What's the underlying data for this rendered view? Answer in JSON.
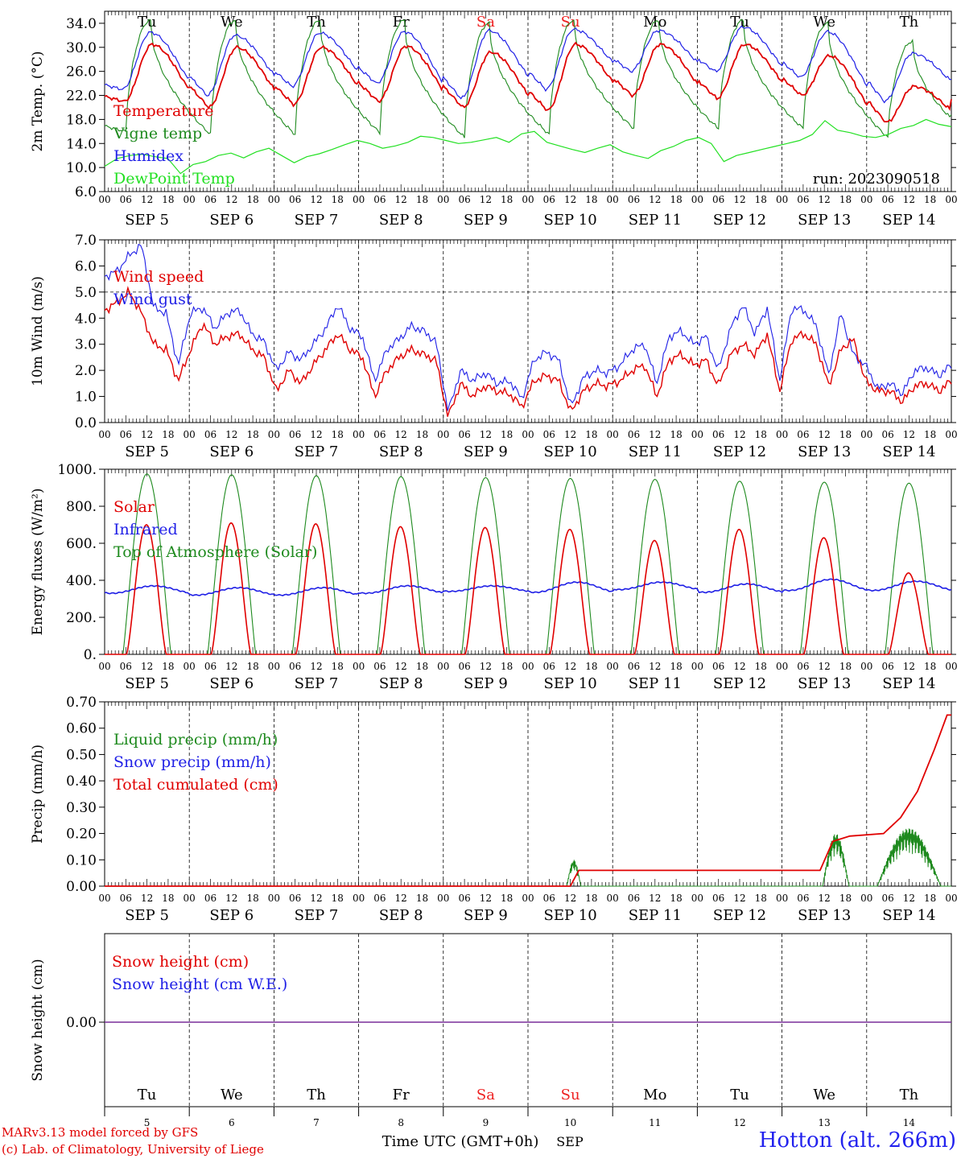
{
  "colors": {
    "red": "#e00000",
    "green": "#1e8a1e",
    "blue": "#1f1fe6",
    "lightgreen": "#22e022",
    "purple": "#7a2f9a",
    "weekend": "#ee2222"
  },
  "days": {
    "day_labels": [
      "Tu",
      "We",
      "Th",
      "Fr",
      "Sa",
      "Su",
      "Mo",
      "Tu",
      "We",
      "Th"
    ],
    "weekend_index": [
      4,
      5
    ],
    "date_labels": [
      "SEP  5",
      "SEP  6",
      "SEP  7",
      "SEP  8",
      "SEP  9",
      "SEP 10",
      "SEP 11",
      "SEP 12",
      "SEP 13",
      "SEP 14"
    ],
    "day_numbers": [
      "5",
      "6",
      "7",
      "8",
      "9",
      "10",
      "11",
      "12",
      "13",
      "14"
    ],
    "hour_ticks": [
      "00",
      "06",
      "12",
      "18"
    ],
    "final_tick": "00"
  },
  "footer": {
    "model_line": "MARv3.13 model forced by GFS",
    "lab_line": "(c) Lab. of Climatology, University of Liege",
    "time_label": "Time UTC (GMT+0h)",
    "month_label": "SEP",
    "station": "Hotton (alt. 266m)"
  },
  "chart_data": [
    {
      "type": "line",
      "ylabel": "2m Temp. (°C)",
      "ylim": [
        6,
        36
      ],
      "yticks": [
        "6.0",
        "10.0",
        "14.0",
        "18.0",
        "22.0",
        "26.0",
        "30.0",
        "34.0"
      ],
      "annotation": "run: 2023090518",
      "legend": [
        "Temperature",
        "Vigne temp",
        "Humidex",
        "DewPoint Temp"
      ],
      "series": [
        {
          "name": "Temperature",
          "color": "red",
          "daily_min": [
            21.0,
            20.0,
            20.5,
            21.0,
            20.0,
            19.5,
            22.0,
            21.5,
            22.0,
            17.5
          ],
          "daily_max": [
            30.5,
            30.0,
            30.0,
            30.2,
            29.2,
            30.5,
            30.5,
            30.5,
            28.6,
            23.5
          ],
          "end": 18.0
        },
        {
          "name": "Vigne temp",
          "color": "green",
          "daily_min": [
            16.0,
            15.5,
            15.5,
            15.8,
            15.0,
            15.5,
            16.5,
            16.5,
            16.5,
            15.0
          ],
          "daily_max": [
            34.5,
            34.5,
            34.5,
            34.5,
            34.0,
            34.5,
            34.5,
            34.5,
            34.0,
            31.0
          ],
          "end": 15.0
        },
        {
          "name": "Humidex",
          "color": "blue",
          "daily_min": [
            23.0,
            22.0,
            23.5,
            24.0,
            21.5,
            23.0,
            26.0,
            26.0,
            25.0,
            21.0
          ],
          "daily_max": [
            32.5,
            32.0,
            32.4,
            32.6,
            32.8,
            33.0,
            32.8,
            33.4,
            32.6,
            29.0
          ],
          "end": 23.0
        },
        {
          "name": "DewPoint Temp",
          "color": "lightgreen",
          "values": [
            10.2,
            11.5,
            12.0,
            12.2,
            11.8,
            11.5,
            9.0,
            10.5,
            11.0,
            12.0,
            12.4,
            11.6,
            12.6,
            13.2,
            12.0,
            10.8,
            11.8,
            12.3,
            13.0,
            13.8,
            14.5,
            14.0,
            13.2,
            13.6,
            14.2,
            15.2,
            15.0,
            14.5,
            14.0,
            14.2,
            14.6,
            15.0,
            14.2,
            15.6,
            16.0,
            14.2,
            13.6,
            13.0,
            12.5,
            13.2,
            13.8,
            12.6,
            12.0,
            11.5,
            12.8,
            13.5,
            14.5,
            15.0,
            14.0,
            11.0,
            12.0,
            12.5,
            13.0,
            13.5,
            14.0,
            14.5,
            15.5,
            17.8,
            16.2,
            15.8,
            15.2,
            15.0,
            15.5,
            16.5,
            17.0,
            18.0,
            17.2,
            16.8
          ]
        }
      ]
    },
    {
      "type": "line",
      "ylabel": "10m Wind (m/s)",
      "ylim": [
        0,
        7
      ],
      "yticks": [
        "0.0",
        "1.0",
        "2.0",
        "3.0",
        "4.0",
        "5.0",
        "6.0",
        "7.0"
      ],
      "reference_line": 5.0,
      "legend": [
        "Wind speed",
        "Wind gust"
      ],
      "series": [
        {
          "name": "Wind speed",
          "color": "red",
          "values": [
            4.3,
            4.6,
            5.0,
            4.2,
            3.0,
            2.8,
            1.6,
            2.8,
            3.8,
            3.0,
            3.3,
            3.4,
            2.8,
            2.5,
            1.2,
            2.0,
            1.5,
            2.2,
            2.8,
            3.4,
            2.8,
            2.5,
            1.0,
            2.0,
            2.5,
            2.8,
            2.6,
            2.4,
            0.2,
            1.5,
            1.0,
            1.4,
            1.2,
            1.1,
            0.6,
            1.6,
            1.8,
            1.6,
            0.4,
            1.2,
            1.5,
            1.4,
            1.6,
            2.0,
            2.2,
            1.0,
            2.4,
            2.6,
            2.2,
            2.4,
            1.4,
            2.6,
            3.0,
            2.6,
            3.4,
            1.2,
            3.2,
            3.4,
            3.0,
            1.4,
            2.8,
            3.2,
            1.6,
            1.2,
            1.2,
            0.8,
            1.4,
            1.5,
            1.2,
            1.6
          ]
        },
        {
          "name": "Wind gust",
          "color": "blue",
          "values": [
            5.6,
            5.8,
            6.4,
            6.8,
            4.4,
            4.2,
            2.2,
            4.2,
            4.4,
            3.6,
            4.2,
            4.3,
            3.4,
            3.1,
            2.0,
            2.7,
            2.4,
            3.0,
            3.6,
            4.5,
            3.6,
            3.3,
            1.6,
            2.8,
            3.2,
            3.7,
            3.5,
            3.1,
            0.4,
            2.0,
            1.6,
            1.9,
            1.5,
            1.6,
            0.9,
            2.4,
            2.7,
            2.4,
            0.6,
            1.7,
            2.0,
            1.9,
            2.2,
            2.8,
            3.0,
            1.5,
            3.3,
            3.5,
            3.0,
            3.3,
            2.0,
            3.6,
            4.5,
            3.4,
            4.4,
            1.6,
            4.4,
            4.3,
            3.7,
            1.8,
            4.2,
            2.6,
            2.2,
            1.3,
            1.5,
            1.1,
            2.0,
            2.1,
            1.8,
            2.2
          ]
        }
      ]
    },
    {
      "type": "line",
      "ylabel": "Energy fluxes (W/m²)",
      "ylim": [
        0,
        1000
      ],
      "yticks": [
        "0.",
        "200.",
        "400.",
        "600.",
        "800.",
        "1000."
      ],
      "legend": [
        "Solar",
        "Infrared",
        "Top of Atmosphere (Solar)"
      ],
      "series": [
        {
          "name": "Solar",
          "color": "red",
          "daily_peak": [
            700,
            710,
            705,
            690,
            685,
            675,
            615,
            675,
            630,
            440
          ]
        },
        {
          "name": "Infrared",
          "color": "blue",
          "daily_min": [
            330,
            320,
            320,
            330,
            340,
            335,
            350,
            335,
            345,
            345
          ],
          "daily_max": [
            370,
            360,
            360,
            370,
            370,
            390,
            390,
            380,
            405,
            395
          ]
        },
        {
          "name": "Top of Atmosphere (Solar)",
          "color": "green",
          "daily_peak": [
            975,
            970,
            965,
            960,
            955,
            950,
            945,
            935,
            930,
            925
          ]
        }
      ]
    },
    {
      "type": "line",
      "ylabel": "Precip (mm/h)",
      "ylim": [
        0,
        0.7
      ],
      "yticks": [
        "0.00",
        "0.10",
        "0.20",
        "0.30",
        "0.40",
        "0.50",
        "0.60",
        "0.70"
      ],
      "legend": [
        "Liquid precip (mm/h)",
        "Snow precip (mm/h)",
        "Total cumulated (cm)"
      ],
      "series": [
        {
          "name": "Liquid precip (mm/h)",
          "color": "green",
          "events": [
            {
              "day": 5,
              "hour_start": 11,
              "hour_end": 15,
              "peak": 0.1
            },
            {
              "day": 8,
              "hour_start": 11.5,
              "hour_end": 19,
              "peak": 0.2
            },
            {
              "day": 9,
              "hour_start": 3,
              "hour_end": 21,
              "peak": 0.22
            }
          ]
        },
        {
          "name": "Snow precip (mm/h)",
          "color": "blue",
          "values": [
            0
          ]
        },
        {
          "name": "Total cumulated (cm)",
          "color": "red",
          "points": [
            [
              0,
              0
            ],
            [
              5.5,
              0
            ],
            [
              5.6,
              0.06
            ],
            [
              8.45,
              0.06
            ],
            [
              8.6,
              0.17
            ],
            [
              8.8,
              0.19
            ],
            [
              9.2,
              0.2
            ],
            [
              9.4,
              0.26
            ],
            [
              9.6,
              0.36
            ],
            [
              9.8,
              0.52
            ],
            [
              9.95,
              0.65
            ],
            [
              10,
              0.65
            ]
          ]
        }
      ]
    },
    {
      "type": "line",
      "ylabel": "Snow height (cm)",
      "yticks": [
        "0.00"
      ],
      "legend": [
        "Snow height (cm)",
        "Snow height (cm W.E.)"
      ],
      "series": [
        {
          "name": "Snow height (cm)",
          "color": "red",
          "values": [
            0,
            0
          ]
        },
        {
          "name": "Snow height (cm W.E.)",
          "color": "blue",
          "values": [
            0,
            0
          ]
        }
      ]
    }
  ]
}
